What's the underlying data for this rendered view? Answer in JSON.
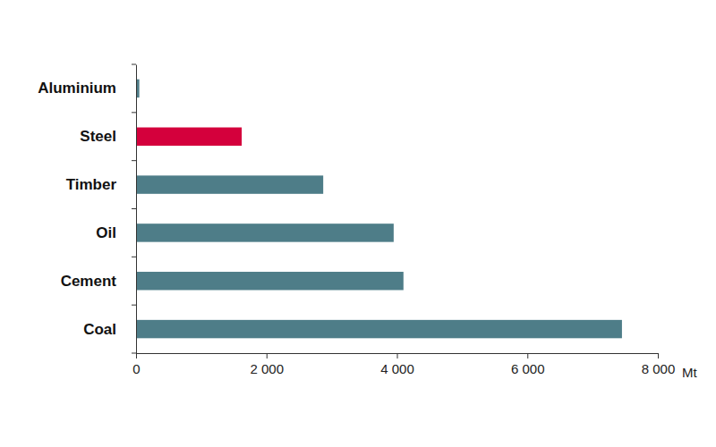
{
  "chart_data": {
    "type": "bar",
    "orientation": "horizontal",
    "categories": [
      "Aluminium",
      "Steel",
      "Timber",
      "Oil",
      "Cement",
      "Coal"
    ],
    "values": [
      50,
      1620,
      2870,
      3950,
      4100,
      7450
    ],
    "colors": [
      "#4e7d88",
      "#d4003c",
      "#4e7d88",
      "#4e7d88",
      "#4e7d88",
      "#4e7d88"
    ],
    "xlabel": "Mt",
    "xlim": [
      0,
      8000
    ],
    "xticks": [
      0,
      {
        "value": 2000,
        "label": "2 000"
      },
      {
        "value": 4000,
        "label": "4 000"
      },
      {
        "value": 6000,
        "label": "6 000"
      },
      {
        "value": 8000,
        "label": "8 000"
      }
    ],
    "grid": false
  }
}
